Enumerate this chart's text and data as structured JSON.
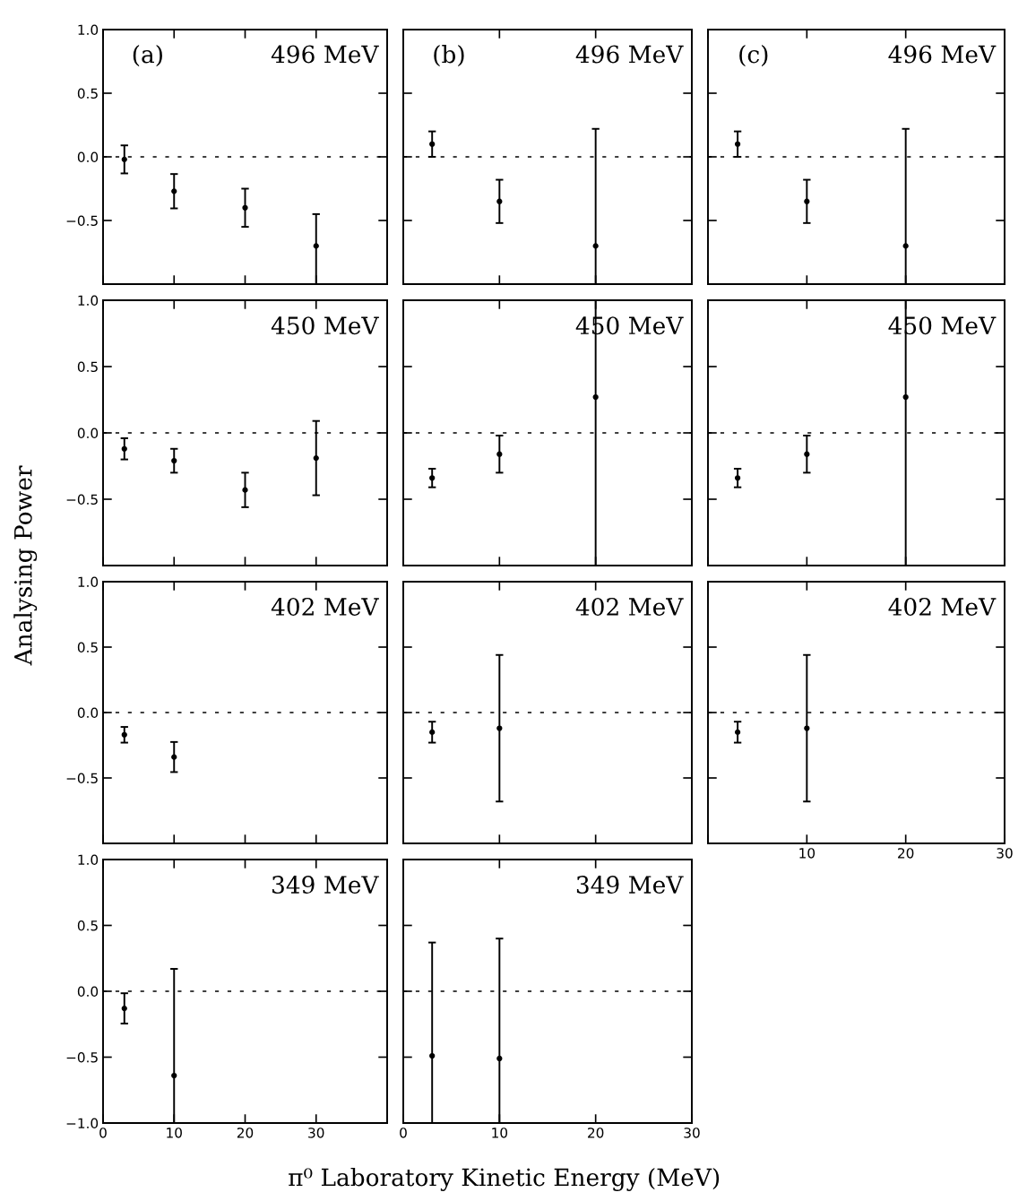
{
  "chart_data": [
    {
      "type": "scatter",
      "title": "496 MeV",
      "annotations": [
        "(a)"
      ],
      "x": [
        3,
        10,
        20,
        30
      ],
      "values": [
        -0.02,
        -0.27,
        -0.4,
        -0.7
      ],
      "errors": [
        0.11,
        0.135,
        0.15,
        [
          -1.0,
          -0.45
        ]
      ],
      "color": "#000000",
      "marker": "circle",
      "xlim": [
        0,
        40
      ],
      "xticks": [
        0,
        10,
        20,
        30
      ],
      "ylim": [
        -1,
        1
      ],
      "yticks": [
        {
          "value": 1,
          "label": "1.0"
        },
        {
          "value": 0.5,
          "label": "0.5"
        },
        {
          "value": 0,
          "label": "0.0"
        },
        {
          "value": -0.5,
          "label": "−0.5"
        },
        {
          "value": -1,
          "label": null
        }
      ],
      "tick_labels": "y",
      "ref_lines": [
        {
          "axis": "y",
          "value": 0,
          "line_style": "dashed"
        }
      ],
      "grid": false,
      "legend": false
    },
    {
      "type": "scatter",
      "title": "496 MeV",
      "annotations": [
        "(b)"
      ],
      "x": [
        3,
        10,
        20
      ],
      "values": [
        0.1,
        -0.35,
        -0.7
      ],
      "errors": [
        0.1,
        0.17,
        [
          -1.0,
          0.22
        ]
      ],
      "color": "#000000",
      "marker": "circle",
      "xlim": [
        0,
        30
      ],
      "xticks": [
        0,
        10,
        20,
        30
      ],
      "ylim": [
        -1,
        1
      ],
      "yticks": [
        1,
        0.5,
        0,
        -0.5,
        -1
      ],
      "tick_labels": false,
      "ref_lines": [
        {
          "axis": "y",
          "value": 0,
          "line_style": "dashed"
        }
      ],
      "grid": false,
      "legend": false
    },
    {
      "type": "scatter",
      "title": "496 MeV",
      "annotations": [
        "(c)"
      ],
      "x": [
        3,
        10,
        20
      ],
      "values": [
        0.1,
        -0.35,
        -0.7
      ],
      "errors": [
        0.1,
        0.17,
        [
          -1.0,
          0.22
        ]
      ],
      "color": "#000000",
      "marker": "circle",
      "xlim": [
        0,
        30
      ],
      "xticks": [
        0,
        10,
        20,
        30
      ],
      "ylim": [
        -1,
        1
      ],
      "yticks": [
        1,
        0.5,
        0,
        -0.5,
        -1
      ],
      "tick_labels": false,
      "ref_lines": [
        {
          "axis": "y",
          "value": 0,
          "line_style": "dashed"
        }
      ],
      "grid": false,
      "legend": false
    },
    {
      "type": "scatter",
      "title": "450 MeV",
      "ylabel": "Analysing Power",
      "x": [
        3,
        10,
        20,
        30
      ],
      "values": [
        -0.12,
        -0.21,
        -0.43,
        -0.19
      ],
      "errors": [
        0.08,
        0.09,
        0.13,
        0.28
      ],
      "color": "#000000",
      "marker": "circle",
      "xlim": [
        0,
        40
      ],
      "xticks": [
        0,
        10,
        20,
        30
      ],
      "ylim": [
        -1,
        1
      ],
      "yticks": [
        {
          "value": 1,
          "label": "1.0"
        },
        {
          "value": 0.5,
          "label": "0.5"
        },
        {
          "value": 0,
          "label": "0.0"
        },
        {
          "value": -0.5,
          "label": "−0.5"
        },
        {
          "value": -1,
          "label": null
        }
      ],
      "tick_labels": "y",
      "ref_lines": [
        {
          "axis": "y",
          "value": 0,
          "line_style": "dashed"
        }
      ],
      "grid": false,
      "legend": false
    },
    {
      "type": "scatter",
      "title": "450 MeV",
      "x": [
        3,
        10,
        20
      ],
      "values": [
        -0.34,
        -0.16,
        0.27
      ],
      "errors": [
        0.07,
        0.14,
        [
          -1.0,
          1.0
        ]
      ],
      "color": "#000000",
      "marker": "circle",
      "xlim": [
        0,
        30
      ],
      "xticks": [
        0,
        10,
        20,
        30
      ],
      "ylim": [
        -1,
        1
      ],
      "yticks": [
        1,
        0.5,
        0,
        -0.5,
        -1
      ],
      "tick_labels": false,
      "ref_lines": [
        {
          "axis": "y",
          "value": 0,
          "line_style": "dashed"
        }
      ],
      "grid": false,
      "legend": false
    },
    {
      "type": "scatter",
      "title": "450 MeV",
      "x": [
        3,
        10,
        20
      ],
      "values": [
        -0.34,
        -0.16,
        0.27
      ],
      "errors": [
        0.07,
        0.14,
        [
          -1.0,
          1.0
        ]
      ],
      "color": "#000000",
      "marker": "circle",
      "xlim": [
        0,
        30
      ],
      "xticks": [
        0,
        10,
        20,
        30
      ],
      "ylim": [
        -1,
        1
      ],
      "yticks": [
        1,
        0.5,
        0,
        -0.5,
        -1
      ],
      "tick_labels": false,
      "ref_lines": [
        {
          "axis": "y",
          "value": 0,
          "line_style": "dashed"
        }
      ],
      "grid": false,
      "legend": false
    },
    {
      "type": "scatter",
      "title": "402 MeV",
      "x": [
        3,
        10
      ],
      "values": [
        -0.17,
        -0.34
      ],
      "errors": [
        0.06,
        0.115
      ],
      "color": "#000000",
      "marker": "circle",
      "xlim": [
        0,
        40
      ],
      "xticks": [
        0,
        10,
        20,
        30
      ],
      "ylim": [
        -1,
        1
      ],
      "yticks": [
        {
          "value": 1,
          "label": "1.0"
        },
        {
          "value": 0.5,
          "label": "0.5"
        },
        {
          "value": 0,
          "label": "0.0"
        },
        {
          "value": -0.5,
          "label": "−0.5"
        },
        {
          "value": -1,
          "label": null
        }
      ],
      "tick_labels": "y",
      "ref_lines": [
        {
          "axis": "y",
          "value": 0,
          "line_style": "dashed"
        }
      ],
      "grid": false,
      "legend": false
    },
    {
      "type": "scatter",
      "title": "402 MeV",
      "x": [
        3,
        10
      ],
      "values": [
        -0.15,
        -0.12
      ],
      "errors": [
        0.08,
        0.56
      ],
      "color": "#000000",
      "marker": "circle",
      "xlim": [
        0,
        30
      ],
      "xticks": [
        0,
        10,
        20,
        30
      ],
      "ylim": [
        -1,
        1
      ],
      "yticks": [
        1,
        0.5,
        0,
        -0.5,
        -1
      ],
      "tick_labels": false,
      "ref_lines": [
        {
          "axis": "y",
          "value": 0,
          "line_style": "dashed"
        }
      ],
      "grid": false,
      "legend": false
    },
    {
      "type": "scatter",
      "title": "402 MeV",
      "x": [
        3,
        10
      ],
      "values": [
        -0.15,
        -0.12
      ],
      "errors": [
        0.08,
        0.56
      ],
      "color": "#000000",
      "marker": "circle",
      "xlim": [
        0,
        30
      ],
      "xticks": [
        {
          "value": 0,
          "label": null
        },
        10,
        20,
        30
      ],
      "ylim": [
        -1,
        1
      ],
      "yticks": [
        1,
        0.5,
        0,
        -0.5,
        -1
      ],
      "tick_labels": "x",
      "ref_lines": [
        {
          "axis": "y",
          "value": 0,
          "line_style": "dashed"
        }
      ],
      "grid": false,
      "legend": false
    },
    {
      "type": "scatter",
      "title": "349 MeV",
      "x": [
        3,
        10
      ],
      "values": [
        -0.13,
        -0.64
      ],
      "errors": [
        0.115,
        [
          -1.0,
          0.17
        ]
      ],
      "color": "#000000",
      "marker": "circle",
      "xlim": [
        0,
        40
      ],
      "xticks": [
        0,
        10,
        20,
        30
      ],
      "ylim": [
        -1,
        1
      ],
      "yticks": [
        {
          "value": 1,
          "label": "1.0"
        },
        {
          "value": 0.5,
          "label": "0.5"
        },
        {
          "value": 0,
          "label": "0.0"
        },
        {
          "value": -0.5,
          "label": "−0.5"
        },
        {
          "value": -1,
          "label": "−1.0"
        }
      ],
      "ref_lines": [
        {
          "axis": "y",
          "value": 0,
          "line_style": "dashed"
        }
      ],
      "grid": false,
      "legend": false
    },
    {
      "type": "scatter",
      "title": "349 MeV",
      "xlabel": "π⁰ Laboratory Kinetic Energy (MeV)",
      "x": [
        3,
        10
      ],
      "values": [
        -0.49,
        -0.51
      ],
      "errors": [
        [
          -1.0,
          0.37
        ],
        [
          -1.0,
          0.4
        ]
      ],
      "color": "#000000",
      "marker": "circle",
      "xlim": [
        0,
        30
      ],
      "xticks": [
        0,
        10,
        20,
        30
      ],
      "ylim": [
        -1,
        1
      ],
      "yticks": [
        1,
        0.5,
        0,
        -0.5,
        -1
      ],
      "tick_labels": "x",
      "ref_lines": [
        {
          "axis": "y",
          "value": 0,
          "line_style": "dashed"
        }
      ],
      "grid": false,
      "legend": false
    }
  ]
}
